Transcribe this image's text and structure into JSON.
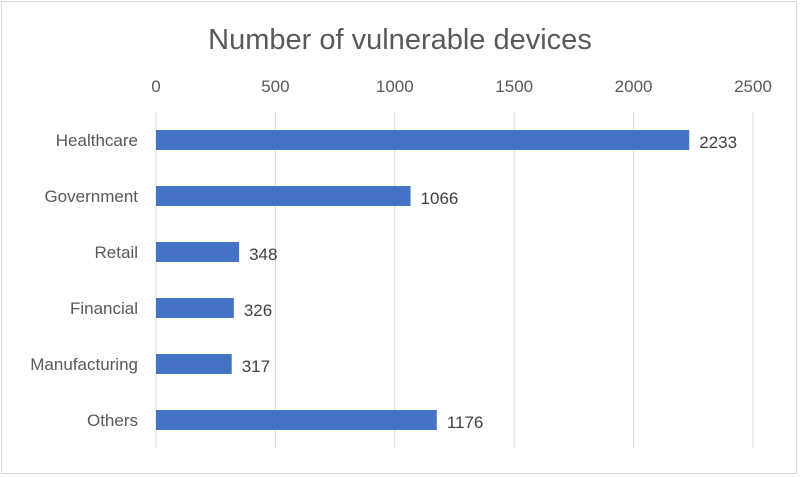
{
  "chart_data": {
    "type": "bar",
    "orientation": "horizontal",
    "title": "Number of vulnerable devices",
    "categories": [
      "Healthcare",
      "Government",
      "Retail",
      "Financial",
      "Manufacturing",
      "Others"
    ],
    "values": [
      2233,
      1066,
      348,
      326,
      317,
      1176
    ],
    "data_labels": [
      "2233",
      "1066",
      "348",
      "326",
      "317",
      "1176"
    ],
    "xlim": [
      0,
      2500
    ],
    "x_ticks": [
      0,
      500,
      1000,
      1500,
      2000,
      2500
    ],
    "x_tick_labels": [
      "0",
      "500",
      "1000",
      "1500",
      "2000",
      "2500"
    ],
    "x_axis_position": "top",
    "grid": true,
    "legend": false,
    "bar_color": "#4472c4",
    "grid_color": "#d9d9d9"
  }
}
